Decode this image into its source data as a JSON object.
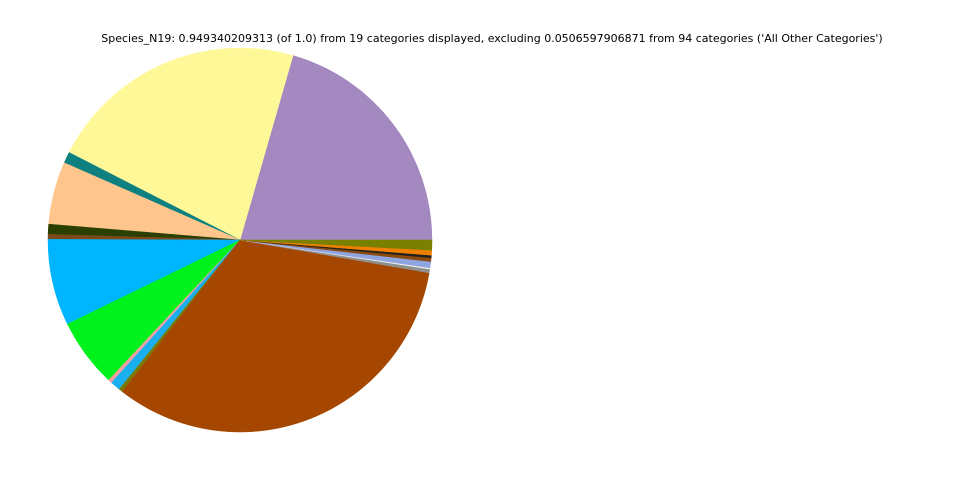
{
  "chart_data": {
    "type": "pie",
    "title": "Species_N19: 0.949340209313 (of 1.0) from 19 categories displayed, excluding 0.0506597906871 from 94 categories ('All Other Categories')",
    "values": [
      0.195,
      0.208,
      0.009,
      0.05,
      0.008,
      0.004,
      0.069,
      0.055,
      0.003,
      0.008,
      0.003,
      0.311,
      0.003,
      0.001,
      0.005,
      0.003,
      0.002,
      0.004,
      0.008
    ],
    "colors": [
      "#a389c0",
      "#fff899",
      "#0e8080",
      "#fec68c",
      "#2a3f00",
      "#7a4a1a",
      "#00b5ff",
      "#00f21c",
      "#f4a0a0",
      "#1ab0f0",
      "#7a7a00",
      "#a54700",
      "#909090",
      "#f0f0f0",
      "#8fa5e0",
      "#8a4a10",
      "#202020",
      "#f08000",
      "#7a8000"
    ],
    "start_angle": 0,
    "counterclockwise": true
  }
}
